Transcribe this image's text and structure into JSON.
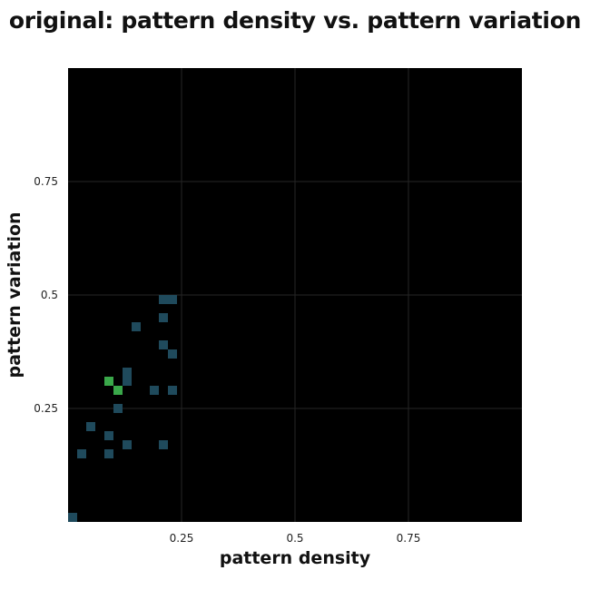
{
  "chart_data": {
    "type": "heatmap",
    "title": "original: pattern density vs. pattern variation",
    "xlabel": "pattern density",
    "ylabel": "pattern variation",
    "xlim": [
      0,
      1
    ],
    "ylim": [
      0,
      1
    ],
    "xticks": [
      0.25,
      0.5,
      0.75
    ],
    "yticks": [
      0.25,
      0.5,
      0.75
    ],
    "xtick_labels": [
      "0.25",
      "0.5",
      "0.75"
    ],
    "ytick_labels": [
      "0.25",
      "0.5",
      "0.75"
    ],
    "grid": true,
    "background_color": "#000000",
    "grid_color": "#262626",
    "bin_size": 0.02,
    "cells": [
      {
        "x": 0.01,
        "y": 0.01,
        "color": "#1f4a5c"
      },
      {
        "x": 0.03,
        "y": 0.15,
        "color": "#1f4a5c"
      },
      {
        "x": 0.05,
        "y": 0.21,
        "color": "#1f4a5c"
      },
      {
        "x": 0.09,
        "y": 0.15,
        "color": "#1f4a5c"
      },
      {
        "x": 0.09,
        "y": 0.19,
        "color": "#1f4a5c"
      },
      {
        "x": 0.09,
        "y": 0.31,
        "color": "#3aa84a"
      },
      {
        "x": 0.11,
        "y": 0.29,
        "color": "#3aa84a"
      },
      {
        "x": 0.11,
        "y": 0.25,
        "color": "#1f4a5c"
      },
      {
        "x": 0.13,
        "y": 0.17,
        "color": "#1f4a5c"
      },
      {
        "x": 0.13,
        "y": 0.31,
        "color": "#1f4a5c"
      },
      {
        "x": 0.13,
        "y": 0.33,
        "color": "#1f4a5c"
      },
      {
        "x": 0.15,
        "y": 0.43,
        "color": "#1f4a5c"
      },
      {
        "x": 0.19,
        "y": 0.29,
        "color": "#1f4a5c"
      },
      {
        "x": 0.21,
        "y": 0.17,
        "color": "#1f4a5c"
      },
      {
        "x": 0.21,
        "y": 0.39,
        "color": "#1f4a5c"
      },
      {
        "x": 0.21,
        "y": 0.45,
        "color": "#1f4a5c"
      },
      {
        "x": 0.21,
        "y": 0.49,
        "color": "#1f4a5c"
      },
      {
        "x": 0.23,
        "y": 0.49,
        "color": "#1f4a5c"
      },
      {
        "x": 0.23,
        "y": 0.37,
        "color": "#1f4a5c"
      },
      {
        "x": 0.23,
        "y": 0.29,
        "color": "#1f4a5c"
      }
    ]
  }
}
